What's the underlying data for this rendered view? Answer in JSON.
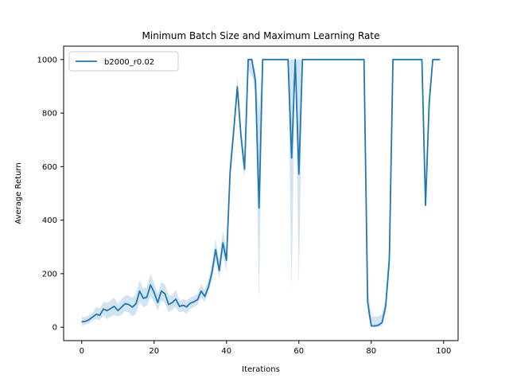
{
  "chart_data": {
    "type": "line",
    "title": "Minimum Batch Size and Maximum Learning Rate",
    "xlabel": "Iterations",
    "ylabel": "Average Return",
    "xlim": [
      -5,
      104
    ],
    "ylim": [
      -50,
      1050
    ],
    "xticks": [
      0,
      20,
      40,
      60,
      80,
      100
    ],
    "yticks": [
      0,
      200,
      400,
      600,
      800,
      1000
    ],
    "grid": false,
    "legend_position": "top-left",
    "series": [
      {
        "name": "b2000_r0.02",
        "color": "#1f77b4",
        "band_color": "#1f77b4",
        "x": [
          0,
          1,
          2,
          3,
          4,
          5,
          6,
          7,
          8,
          9,
          10,
          11,
          12,
          13,
          14,
          15,
          16,
          17,
          18,
          19,
          20,
          21,
          22,
          23,
          24,
          25,
          26,
          27,
          28,
          29,
          30,
          31,
          32,
          33,
          34,
          35,
          36,
          37,
          38,
          39,
          40,
          41,
          42,
          43,
          44,
          45,
          46,
          47,
          48,
          49,
          50,
          51,
          52,
          53,
          54,
          55,
          56,
          57,
          58,
          59,
          60,
          61,
          62,
          63,
          64,
          65,
          66,
          67,
          68,
          69,
          70,
          71,
          72,
          73,
          74,
          75,
          76,
          77,
          78,
          79,
          80,
          81,
          82,
          83,
          84,
          85,
          86,
          87,
          88,
          89,
          90,
          91,
          92,
          93,
          94,
          95,
          96,
          97,
          98,
          99
        ],
        "values": [
          20,
          22,
          28,
          38,
          48,
          45,
          68,
          62,
          70,
          78,
          62,
          75,
          88,
          85,
          75,
          88,
          135,
          108,
          112,
          158,
          130,
          92,
          135,
          125,
          85,
          92,
          105,
          78,
          82,
          76,
          90,
          95,
          103,
          135,
          115,
          150,
          205,
          290,
          212,
          315,
          250,
          580,
          735,
          898,
          715,
          590,
          1000,
          1000,
          920,
          445,
          1000,
          1000,
          1000,
          1000,
          1000,
          1000,
          1000,
          1000,
          632,
          1000,
          572,
          1000,
          1000,
          1000,
          1000,
          1000,
          1000,
          1000,
          1000,
          1000,
          1000,
          1000,
          1000,
          1000,
          1000,
          1000,
          1000,
          1000,
          1000,
          95,
          5,
          5,
          8,
          18,
          80,
          255,
          1000,
          1000,
          1000,
          1000,
          1000,
          1000,
          1000,
          1000,
          1000,
          455,
          835,
          1000,
          1000,
          1000
        ],
        "lower": [
          5,
          10,
          15,
          25,
          30,
          25,
          45,
          30,
          40,
          45,
          40,
          45,
          60,
          55,
          40,
          50,
          95,
          75,
          80,
          115,
          95,
          60,
          100,
          90,
          55,
          65,
          75,
          55,
          60,
          50,
          70,
          75,
          85,
          110,
          95,
          130,
          175,
          250,
          180,
          270,
          210,
          540,
          700,
          860,
          680,
          560,
          960,
          940,
          880,
          90,
          1000,
          1000,
          1000,
          1000,
          1000,
          1000,
          1000,
          1000,
          130,
          1000,
          150,
          1000,
          1000,
          1000,
          1000,
          1000,
          1000,
          1000,
          1000,
          1000,
          1000,
          1000,
          1000,
          1000,
          1000,
          1000,
          1000,
          1000,
          1000,
          55,
          0,
          0,
          0,
          5,
          55,
          200,
          1000,
          1000,
          1000,
          1000,
          1000,
          1000,
          1000,
          1000,
          1000,
          455,
          780,
          1000,
          1000,
          1000
        ],
        "upper": [
          40,
          38,
          45,
          55,
          75,
          70,
          95,
          90,
          100,
          110,
          88,
          105,
          120,
          118,
          110,
          125,
          175,
          145,
          150,
          200,
          165,
          125,
          170,
          160,
          120,
          120,
          140,
          100,
          105,
          100,
          110,
          118,
          125,
          160,
          140,
          175,
          240,
          330,
          250,
          360,
          290,
          620,
          770,
          935,
          750,
          620,
          1000,
          1000,
          960,
          800,
          1000,
          1000,
          1000,
          1000,
          1000,
          1000,
          1000,
          1000,
          1000,
          1000,
          1000,
          1000,
          1000,
          1000,
          1000,
          1000,
          1000,
          1000,
          1000,
          1000,
          1000,
          1000,
          1000,
          1000,
          1000,
          1000,
          1000,
          1000,
          1000,
          160,
          40,
          40,
          40,
          50,
          110,
          310,
          1000,
          1000,
          1000,
          1000,
          1000,
          1000,
          1000,
          1000,
          1000,
          455,
          880,
          1000,
          1000,
          1000
        ]
      }
    ]
  }
}
